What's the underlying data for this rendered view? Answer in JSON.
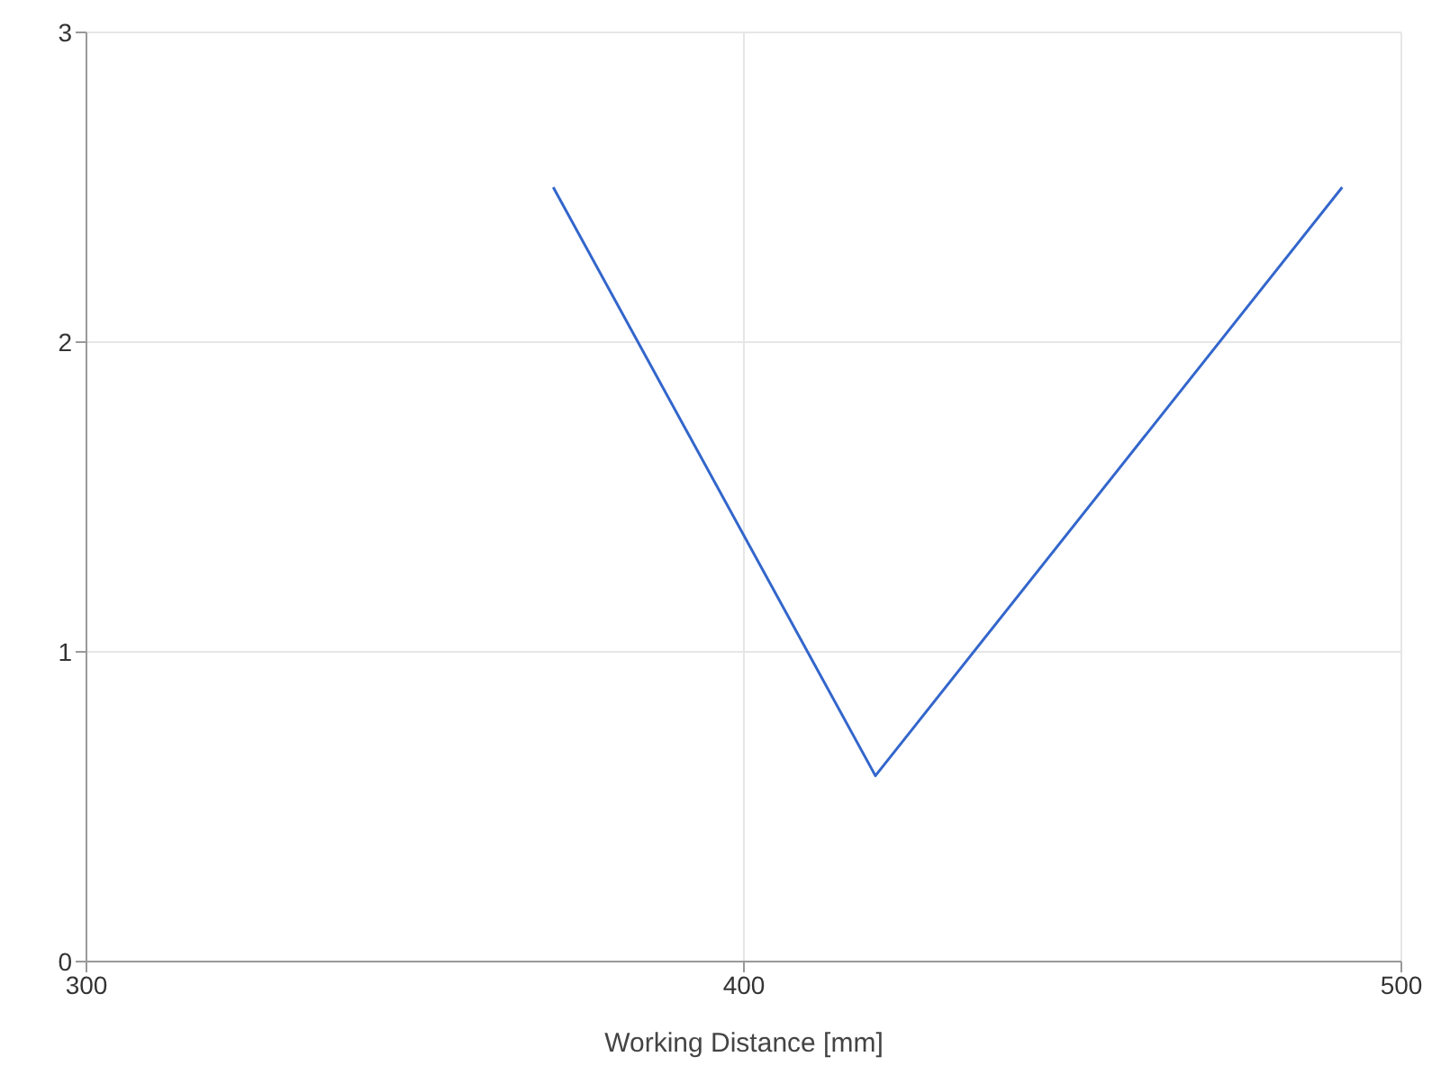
{
  "chart_data": {
    "type": "line",
    "xlabel": "Working Distance [mm]",
    "x": [
      371,
      420,
      491
    ],
    "series": [
      {
        "color": "#3366cc",
        "values": [
          2.5,
          0.6,
          2.5
        ]
      }
    ],
    "xlim": [
      300,
      500
    ],
    "xticks": [
      300,
      400,
      500
    ],
    "ylim": [
      0,
      3
    ],
    "yticks": [
      0,
      1,
      2,
      3
    ],
    "grid": true,
    "legend": false,
    "marker": "none",
    "line_style": "solid"
  }
}
